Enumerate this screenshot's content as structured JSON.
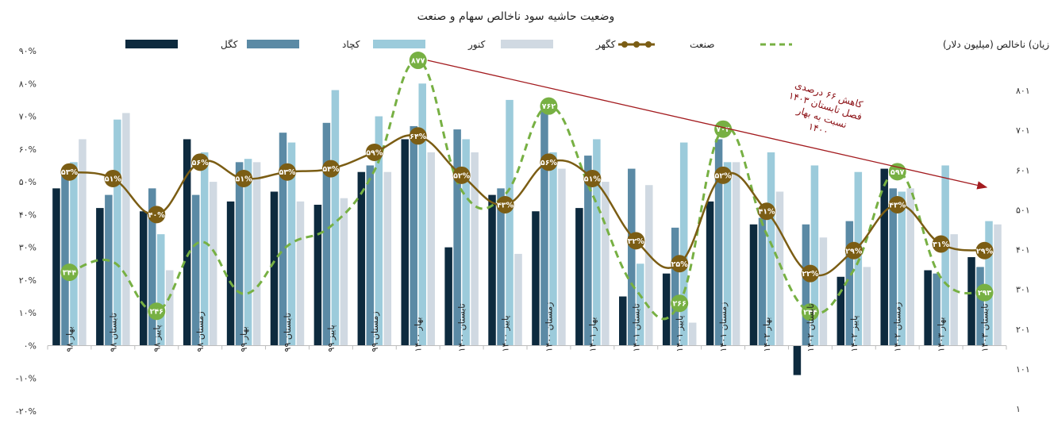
{
  "chart_data": {
    "type": "bar",
    "title": "وضعیت حاشیه سود ناخالص سهام و صنعت",
    "categories": [
      "بهار ۹۸",
      "تابستان ۹۸",
      "پاییز ۹۸",
      "زمستان ۹۸",
      "بهار ۹۹",
      "تابستان ۹۹",
      "پاییز ۹۹",
      "زمستان ۹۹",
      "بهار ۱۴۰۰",
      "تابستان ۱۴۰۰",
      "پاییز ۱۴۰۰",
      "زمستان ۱۴۰۰",
      "بهار ۱۴۰۱",
      "تابستان ۱۴۰۱",
      "پاییز ۱۴۰۱",
      "زمستان ۱۴۰۱",
      "بهار ۱۴۰۲",
      "تابستان ۱۴۰۲",
      "پاییز ۱۴۰۲",
      "زمستان ۱۴۰۲",
      "بهار ۱۴۰۳",
      "تابستان ۱۴۰۳"
    ],
    "y_left": {
      "min": -20,
      "max": 90,
      "step": 10,
      "tick_labels": [
        "-۲۰%",
        "-۱۰%",
        "۰%",
        "۱۰%",
        "۲۰%",
        "۳۰%",
        "۴۰%",
        "۵۰%",
        "۶۰%",
        "۷۰%",
        "۸۰%",
        "۹۰%"
      ]
    },
    "y_right": {
      "min": 1,
      "max": 901,
      "ticks": [
        1,
        101,
        201,
        301,
        401,
        501,
        601,
        701,
        801
      ],
      "tick_labels": [
        "۱",
        "۱۰۱",
        "۲۰۱",
        "۳۰۱",
        "۴۰۱",
        "۵۰۱",
        "۶۰۱",
        "۷۰۱",
        "۸۰۱"
      ]
    },
    "series": [
      {
        "name": "کگل",
        "kind": "bar",
        "color": "#0d2a3e",
        "values": [
          48,
          42,
          41,
          63,
          44,
          47,
          43,
          53,
          63,
          30,
          46,
          41,
          42,
          15,
          22,
          44,
          37,
          -9,
          21,
          54,
          23,
          27
        ]
      },
      {
        "name": "کچاد",
        "kind": "bar",
        "color": "#5b8aa5",
        "values": [
          53,
          46,
          48,
          46,
          56,
          65,
          68,
          55,
          67,
          66,
          48,
          72,
          58,
          54,
          36,
          63,
          39,
          37,
          38,
          48,
          22,
          24
        ]
      },
      {
        "name": "کنور",
        "kind": "bar",
        "color": "#9ccbdb",
        "values": [
          56,
          69,
          34,
          59,
          57,
          62,
          78,
          70,
          80,
          63,
          75,
          59,
          63,
          25,
          62,
          56,
          59,
          55,
          53,
          47,
          55,
          38
        ]
      },
      {
        "name": "کگهر",
        "kind": "bar",
        "color": "#d0d9e2",
        "values": [
          63,
          71,
          23,
          50,
          56,
          44,
          45,
          53,
          59,
          59,
          28,
          54,
          50,
          49,
          7,
          56,
          47,
          33,
          24,
          48,
          34,
          37
        ]
      },
      {
        "name": "صنعت",
        "kind": "line",
        "color": "#7b5d14",
        "values": [
          53,
          51,
          40,
          56,
          51,
          53,
          54,
          59,
          64,
          52,
          43,
          56,
          51,
          32,
          25,
          52,
          41,
          22,
          29,
          43,
          31,
          29
        ],
        "point_labels": [
          "۵۳%",
          "۵۱%",
          "۴۰%",
          "۵۶%",
          "۵۱%",
          "۵۳%",
          "۵۴%",
          "۵۹%",
          "۶۴%",
          "۵۲%",
          "۴۳%",
          "۵۶%",
          "۵۱%",
          "۳۲%",
          "۲۵%",
          "۵۲%",
          "۴۱%",
          "۲۲%",
          "۲۹%",
          "۴۳%",
          "۳۱%",
          "۲۹%"
        ]
      },
      {
        "name": "سود (زیان) ناخالص (میلیون دلار)",
        "kind": "line-dashed",
        "axis": "right",
        "color": "#77b043",
        "values": [
          344,
          370,
          246,
          420,
          290,
          410,
          460,
          600,
          877,
          550,
          540,
          762,
          540,
          300,
          266,
          704,
          440,
          244,
          350,
          597,
          330,
          293
        ],
        "labeled_points": [
          {
            "index": 0,
            "label": "۳۴۴"
          },
          {
            "index": 2,
            "label": "۲۴۶"
          },
          {
            "index": 8,
            "label": "۸۷۷"
          },
          {
            "index": 11,
            "label": "۷۶۲"
          },
          {
            "index": 14,
            "label": "۲۶۶"
          },
          {
            "index": 15,
            "label": "۷۰۴"
          },
          {
            "index": 17,
            "label": "۲۴۴"
          },
          {
            "index": 19,
            "label": "۵۹۷"
          },
          {
            "index": 21,
            "label": "۲۹۳"
          }
        ]
      }
    ],
    "legend": {
      "placement": "top",
      "labels": [
        "کگل",
        "کچاد",
        "کنور",
        "کگهر",
        "صنعت",
        "سود (زیان) ناخالص (میلیون دلار)"
      ]
    },
    "annotation": {
      "lines": [
        "کاهش ۶۶ درصدی",
        "فصل تابستان ۱۴۰۳",
        "نسبت به بهار",
        "۱۴۰۰"
      ],
      "color": "#a31b1f"
    },
    "grid": false
  }
}
